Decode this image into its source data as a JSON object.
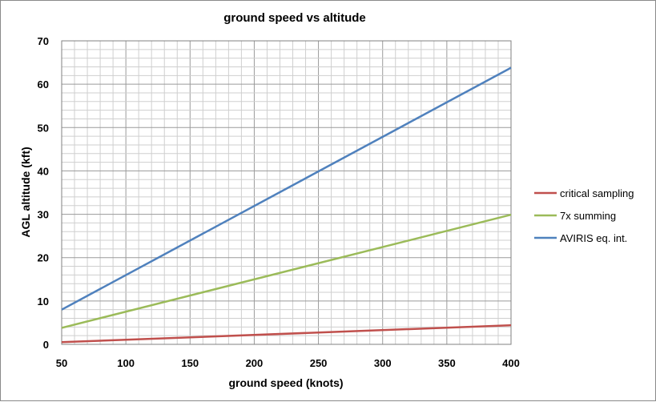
{
  "chart_data": {
    "type": "line",
    "title": "ground speed vs altitude",
    "xlabel": "ground speed (knots)",
    "ylabel": "AGL altitude (kft)",
    "xlim": [
      50,
      400
    ],
    "ylim": [
      0,
      70
    ],
    "x_ticks": [
      50,
      100,
      150,
      200,
      250,
      300,
      350,
      400
    ],
    "y_ticks": [
      0,
      10,
      20,
      30,
      40,
      50,
      60,
      70
    ],
    "grid": true,
    "legend_position": "right",
    "series": [
      {
        "name": "critical sampling",
        "color": "#c0504d",
        "x": [
          50,
          400
        ],
        "y": [
          0.5,
          4.4
        ]
      },
      {
        "name": "7x summing",
        "color": "#9bbb59",
        "x": [
          50,
          400
        ],
        "y": [
          3.8,
          29.9
        ]
      },
      {
        "name": "AVIRIS eq. int.",
        "color": "#4f81bd",
        "x": [
          50,
          400
        ],
        "y": [
          8.0,
          63.8
        ]
      }
    ]
  }
}
